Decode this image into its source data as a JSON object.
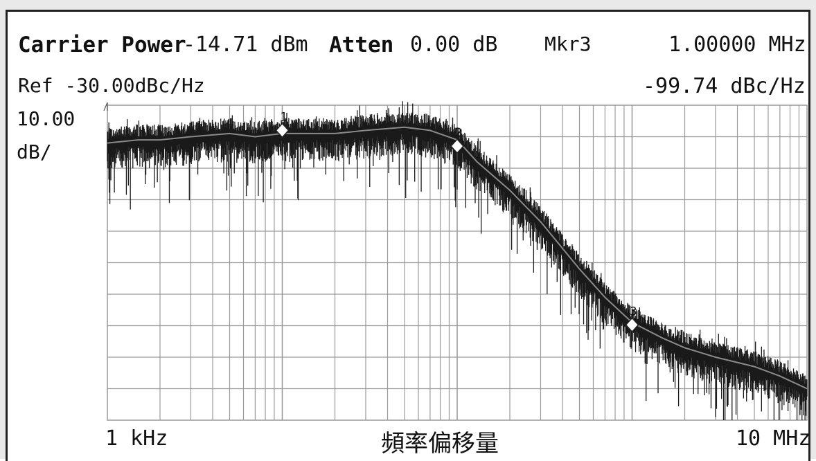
{
  "header": {
    "carrier_label": "Carrier Power",
    "carrier_value": "-14.71 dBm",
    "atten_label": "Atten",
    "atten_value": "0.00 dB",
    "marker_label": "Mkr3",
    "marker_freq": "1.00000 MHz",
    "ref_label": "Ref -30.00dBc/Hz",
    "marker_level": "-99.74 dBc/Hz",
    "scale_value": "10.00",
    "scale_unit": "dB/"
  },
  "footer": {
    "start_label": "1 kHz",
    "stop_label": "10 MHz",
    "caption": "頻率偏移量"
  },
  "colors": {
    "trace": "#1a1a1a",
    "smoothed": "#8a8a8a",
    "grid": "#9a9a9a",
    "background": "#ffffff"
  },
  "chart_data": {
    "type": "line",
    "x_scale": "log",
    "xlim": [
      1000,
      10000000
    ],
    "ylim": [
      -130,
      -30
    ],
    "ylabel": "dBc/Hz",
    "grid": true,
    "markers": [
      {
        "label": "1",
        "x": 10000,
        "y": -38
      },
      {
        "label": "2",
        "x": 100000,
        "y": -43
      },
      {
        "label": "3",
        "x": 1000000,
        "y": -99.74
      }
    ],
    "series": [
      {
        "x": [
          1000,
          1500,
          2000,
          3000,
          5000,
          7000,
          10000,
          15000,
          20000,
          30000,
          50000,
          70000,
          100000,
          130000,
          200000,
          300000,
          500000,
          700000,
          1000000,
          1500000,
          2000000,
          3000000,
          5000000,
          7000000,
          10000000
        ],
        "y": [
          -42,
          -41,
          -41,
          -40,
          -39,
          -40,
          -39,
          -39,
          -39,
          -38,
          -37,
          -38,
          -41,
          -48,
          -57,
          -67,
          -82,
          -91,
          -99,
          -104,
          -107,
          -110,
          -113,
          -116,
          -120
        ]
      }
    ]
  }
}
